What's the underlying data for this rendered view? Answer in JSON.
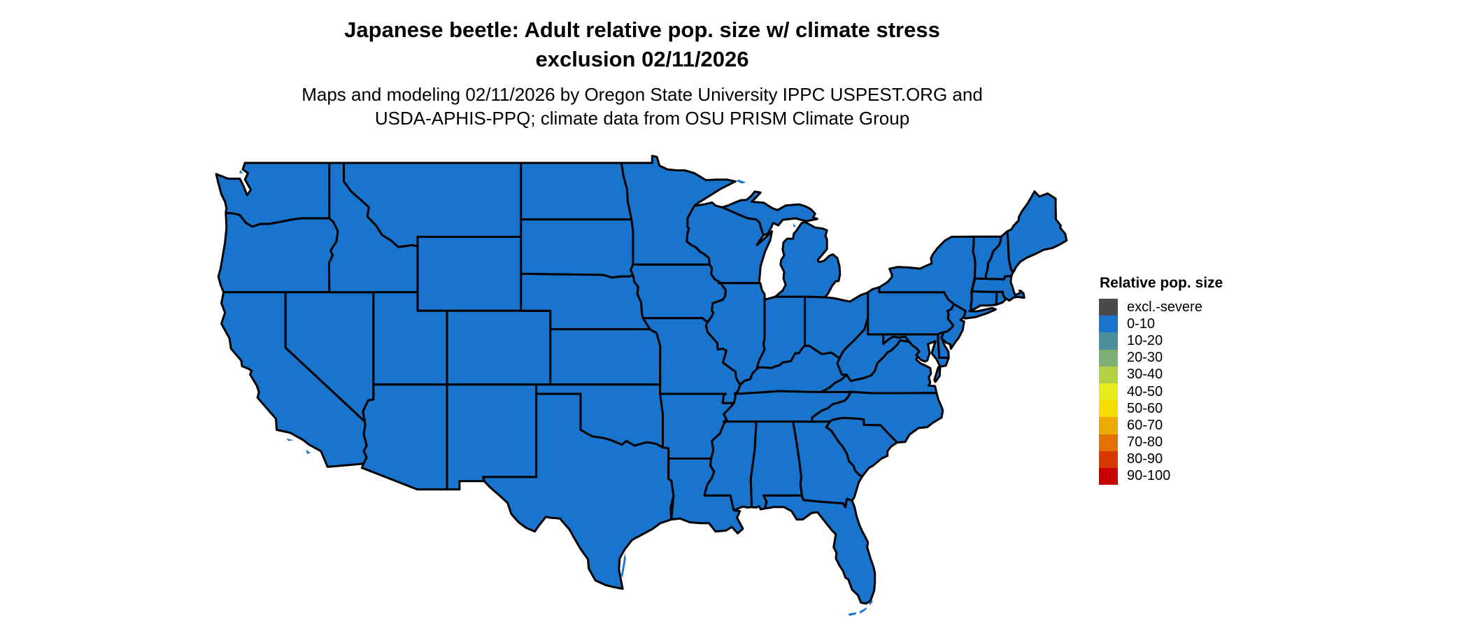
{
  "title": {
    "line1": "Japanese beetle: Adult relative pop. size w/ climate stress",
    "line2": "exclusion 02/11/2026"
  },
  "subtitle": {
    "line1": "Maps and modeling 02/11/2026 by Oregon State University IPPC USPEST.ORG and",
    "line2": "USDA-APHIS-PPQ; climate data from OSU PRISM Climate Group"
  },
  "legend": {
    "title": "Relative pop. size",
    "entries": [
      {
        "label": "excl.-severe",
        "color": "#4A4A4A"
      },
      {
        "label": "0-10",
        "color": "#1874CD"
      },
      {
        "label": "10-20",
        "color": "#4A8F9C"
      },
      {
        "label": "20-30",
        "color": "#7DB072"
      },
      {
        "label": "30-40",
        "color": "#B4D044"
      },
      {
        "label": "40-50",
        "color": "#E8EB1E"
      },
      {
        "label": "50-60",
        "color": "#F7DC00"
      },
      {
        "label": "60-70",
        "color": "#EDAB00"
      },
      {
        "label": "70-80",
        "color": "#E27200"
      },
      {
        "label": "80-90",
        "color": "#D63A00"
      },
      {
        "label": "90-100",
        "color": "#C90000"
      }
    ]
  },
  "map": {
    "region": "Contiguous United States",
    "all_states_category": "0-10",
    "fill_color": "#1874CD",
    "border_color": "#000000",
    "water_color": "#FFFFFF"
  }
}
